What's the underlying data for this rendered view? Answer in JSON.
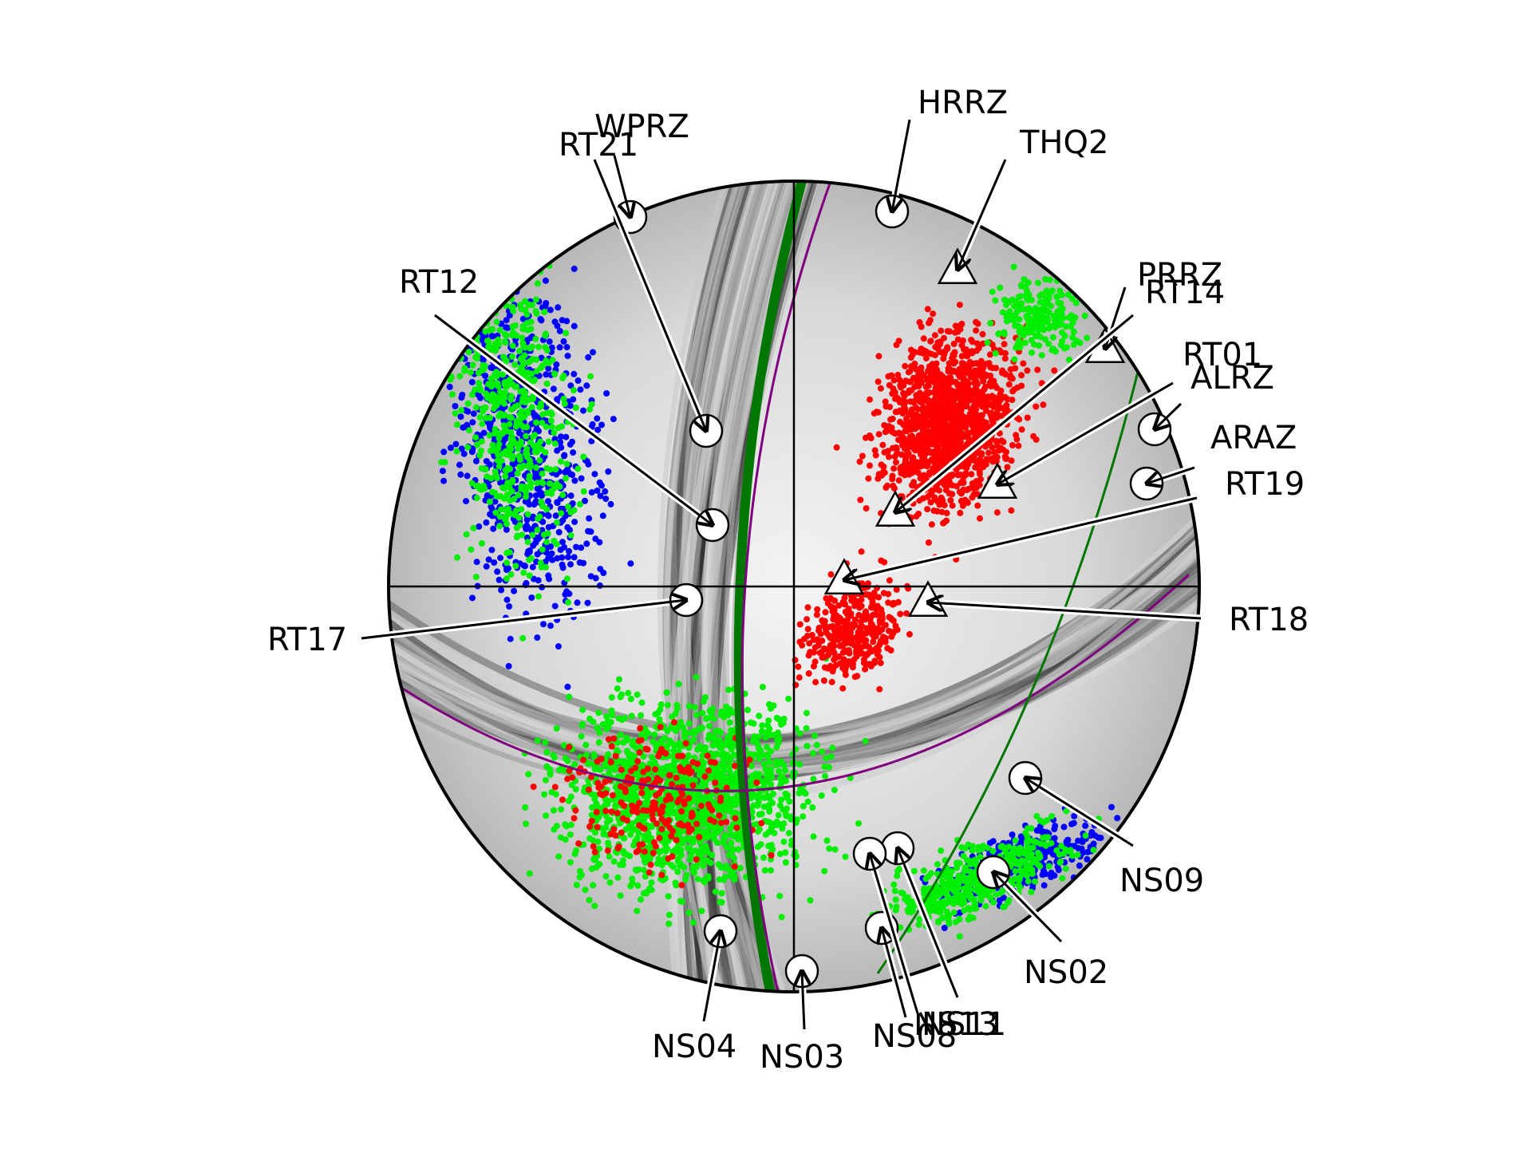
{
  "figure": {
    "colors": {
      "dilatation": "#ff0000",
      "compression": "#00ee00",
      "other": "#0000ff",
      "plane_dark": "#000000",
      "plane_green": "#007700",
      "plane_purple": "#800080",
      "marker_fill": "#ffffff",
      "marker_stroke": "#000000"
    },
    "stations": [
      {
        "name": "WPRZ",
        "symbol": "circle"
      },
      {
        "name": "RT21",
        "symbol": "circle"
      },
      {
        "name": "HRRZ",
        "symbol": "circle"
      },
      {
        "name": "THQ2",
        "symbol": "triangle"
      },
      {
        "name": "PRRZ",
        "symbol": "triangle"
      },
      {
        "name": "RT14",
        "symbol": "triangle"
      },
      {
        "name": "RT12",
        "symbol": "circle"
      },
      {
        "name": "RT01",
        "symbol": "circle"
      },
      {
        "name": "ALRZ",
        "symbol": "triangle"
      },
      {
        "name": "ARAZ",
        "symbol": "circle"
      },
      {
        "name": "RT19",
        "symbol": "triangle"
      },
      {
        "name": "RT17",
        "symbol": "circle"
      },
      {
        "name": "RT18",
        "symbol": "triangle"
      },
      {
        "name": "NS09",
        "symbol": "circle"
      },
      {
        "name": "NS02",
        "symbol": "circle"
      },
      {
        "name": "NS04",
        "symbol": "circle"
      },
      {
        "name": "NS03",
        "symbol": "circle"
      },
      {
        "name": "NS08",
        "symbol": "circle"
      },
      {
        "name": "NS13",
        "symbol": "circle"
      },
      {
        "name": "NS11",
        "symbol": "circle"
      }
    ]
  }
}
